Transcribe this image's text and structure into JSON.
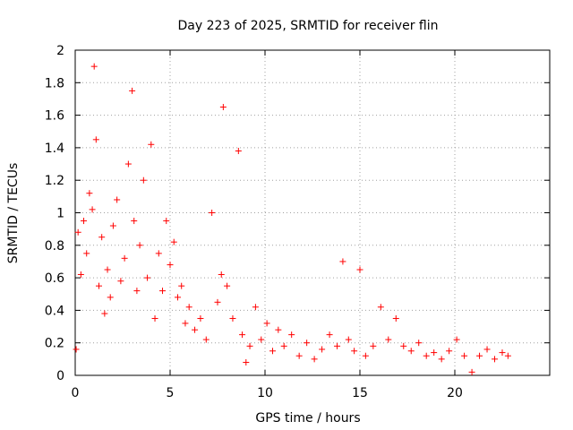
{
  "chart_data": {
    "type": "scatter",
    "title": "Day 223 of 2025, SRMTID for receiver flin",
    "xlabel": "GPS time / hours",
    "ylabel": "SRMTID / TECUs",
    "xlim": [
      0,
      25
    ],
    "ylim": [
      0,
      2
    ],
    "xticks": [
      0,
      5,
      10,
      15,
      20
    ],
    "xtick_labels": [
      "0",
      "5",
      "10",
      "15",
      "20"
    ],
    "yticks": [
      0,
      0.2,
      0.4,
      0.6,
      0.8,
      1,
      1.2,
      1.4,
      1.6,
      1.8,
      2
    ],
    "ytick_labels": [
      "0",
      "0.2",
      "0.4",
      "0.6",
      "0.8",
      "1",
      "1.2",
      "1.4",
      "1.6",
      "1.8",
      "2"
    ],
    "grid": true,
    "marker": "plus",
    "color": "#ff0000",
    "series": [
      {
        "name": "SRMTID",
        "x": [
          0.05,
          0.15,
          0.3,
          0.45,
          0.6,
          0.75,
          0.9,
          1.0,
          1.1,
          1.25,
          1.4,
          1.55,
          1.7,
          1.85,
          2.0,
          2.2,
          2.4,
          2.6,
          2.8,
          3.0,
          3.1,
          3.25,
          3.4,
          3.6,
          3.8,
          4.0,
          4.2,
          4.4,
          4.6,
          4.8,
          5.0,
          5.2,
          5.4,
          5.6,
          5.8,
          6.0,
          6.3,
          6.6,
          6.9,
          7.2,
          7.5,
          7.7,
          7.8,
          8.0,
          8.3,
          8.6,
          8.8,
          9.0,
          9.2,
          9.5,
          9.8,
          10.1,
          10.4,
          10.7,
          11.0,
          11.4,
          11.8,
          12.2,
          12.6,
          13.0,
          13.4,
          13.8,
          14.1,
          14.4,
          14.7,
          15.0,
          15.3,
          15.7,
          16.1,
          16.5,
          16.9,
          17.3,
          17.7,
          18.1,
          18.5,
          18.9,
          19.3,
          19.7,
          20.1,
          20.5,
          20.9,
          21.3,
          21.7,
          22.1,
          22.5,
          22.8
        ],
        "y": [
          0.16,
          0.88,
          0.62,
          0.95,
          0.75,
          1.12,
          1.02,
          1.9,
          1.45,
          0.55,
          0.85,
          0.38,
          0.65,
          0.48,
          0.92,
          1.08,
          0.58,
          0.72,
          1.3,
          1.75,
          0.95,
          0.52,
          0.8,
          1.2,
          0.6,
          1.42,
          0.35,
          0.75,
          0.52,
          0.95,
          0.68,
          0.82,
          0.48,
          0.55,
          0.32,
          0.42,
          0.28,
          0.35,
          0.22,
          1.0,
          0.45,
          0.62,
          1.65,
          0.55,
          0.35,
          1.38,
          0.25,
          0.08,
          0.18,
          0.42,
          0.22,
          0.32,
          0.15,
          0.28,
          0.18,
          0.25,
          0.12,
          0.2,
          0.1,
          0.16,
          0.25,
          0.18,
          0.7,
          0.22,
          0.15,
          0.65,
          0.12,
          0.18,
          0.42,
          0.22,
          0.35,
          0.18,
          0.15,
          0.2,
          0.12,
          0.14,
          0.1,
          0.15,
          0.22,
          0.12,
          0.02,
          0.12,
          0.16,
          0.1,
          0.14,
          0.12
        ]
      }
    ]
  }
}
